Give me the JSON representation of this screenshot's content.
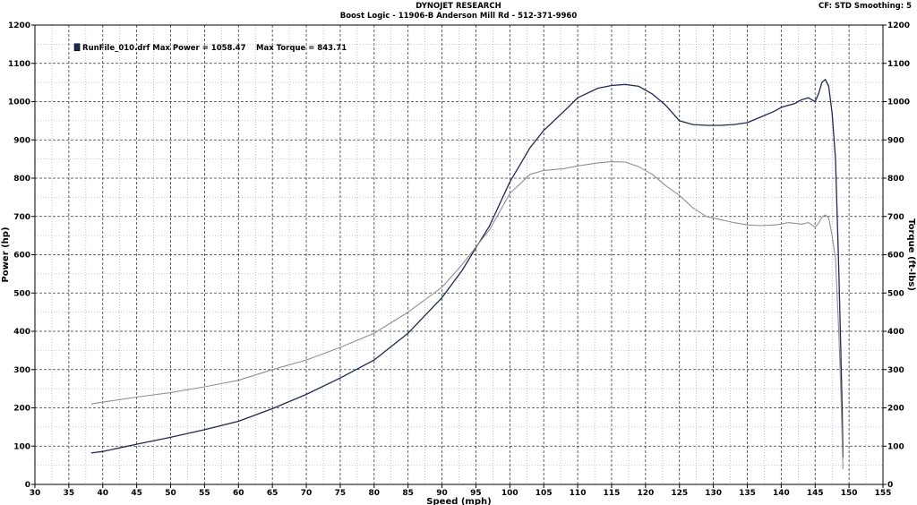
{
  "header": {
    "title": "DYNOJET RESEARCH",
    "subtitle": "Boost Logic  - 11906-B Anderson Mill Rd - 512-371-9960",
    "cf_label": "CF: STD  Smoothing: 5"
  },
  "legend": {
    "run_file": "RunFile_010.drf",
    "max_power": "Max Power = 1058.47",
    "max_torque": "Max Torque = 843.71"
  },
  "chart_data": {
    "type": "line",
    "title": "",
    "xlabel": "Speed (mph)",
    "ylabel": "Power (hp)",
    "y2label": "Torque (ft-lbs)",
    "xlim": [
      30,
      155
    ],
    "ylim": [
      0,
      1200
    ],
    "y2lim": [
      0,
      1200
    ],
    "x_ticks": [
      30,
      35,
      40,
      45,
      50,
      55,
      60,
      65,
      70,
      75,
      80,
      85,
      90,
      95,
      100,
      105,
      110,
      115,
      120,
      125,
      130,
      135,
      140,
      145,
      150,
      155
    ],
    "y_ticks": [
      0,
      100,
      200,
      300,
      400,
      500,
      600,
      700,
      800,
      900,
      1000,
      1100,
      1200
    ],
    "grid": true,
    "legend_position": "top-left",
    "colors": {
      "power": "#1f2a55",
      "torque": "#909090"
    },
    "series": [
      {
        "name": "Power",
        "axis": "left",
        "x": [
          38.3,
          40,
          45,
          50,
          55,
          60,
          65,
          70,
          75,
          80,
          85,
          90,
          93,
          95,
          97,
          100,
          103,
          105,
          108,
          110,
          113,
          115,
          117,
          119,
          121,
          123,
          125,
          127,
          129,
          131,
          133,
          135,
          137,
          139,
          140,
          141,
          142,
          143,
          144,
          144.5,
          145,
          145.5,
          146,
          146.5,
          147,
          147.5,
          148,
          148.5,
          148.8,
          149,
          149.1
        ],
        "values": [
          82,
          86,
          105,
          123,
          143,
          165,
          198,
          235,
          278,
          325,
          395,
          488,
          560,
          618,
          675,
          790,
          880,
          925,
          975,
          1010,
          1035,
          1042,
          1045,
          1040,
          1020,
          990,
          950,
          940,
          938,
          938,
          940,
          945,
          960,
          975,
          985,
          990,
          995,
          1005,
          1010,
          1005,
          1000,
          1020,
          1050,
          1058,
          1040,
          970,
          850,
          550,
          340,
          190,
          70
        ]
      },
      {
        "name": "Torque",
        "axis": "right",
        "x": [
          38.3,
          40,
          45,
          50,
          55,
          60,
          65,
          70,
          75,
          80,
          85,
          90,
          93,
          95,
          97,
          100,
          103,
          105,
          108,
          110,
          113,
          115,
          117,
          119,
          121,
          123,
          125,
          127,
          129,
          131,
          133,
          135,
          137,
          139,
          140,
          141,
          142,
          143,
          144,
          144.5,
          145,
          145.5,
          146,
          146.5,
          147,
          147.5,
          148,
          148.5,
          148.8,
          149,
          149.1
        ],
        "values": [
          210,
          215,
          228,
          240,
          255,
          272,
          300,
          325,
          358,
          395,
          450,
          515,
          575,
          620,
          665,
          760,
          810,
          820,
          825,
          832,
          840,
          843,
          842,
          830,
          810,
          780,
          755,
          722,
          700,
          692,
          684,
          678,
          676,
          678,
          680,
          684,
          682,
          680,
          684,
          678,
          672,
          682,
          698,
          704,
          696,
          650,
          590,
          390,
          240,
          110,
          40
        ]
      }
    ]
  }
}
